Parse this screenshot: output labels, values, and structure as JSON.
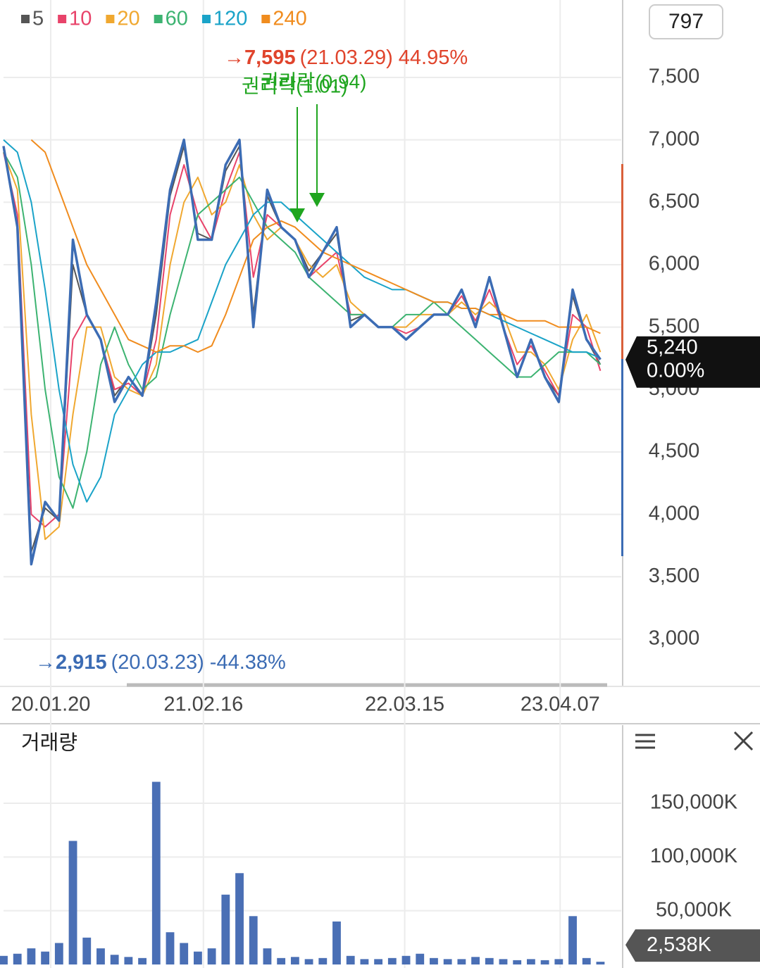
{
  "chart_data": [
    {
      "type": "line",
      "badge": "797",
      "xlim": [
        0,
        44.5
      ],
      "xticks": [
        {
          "value": 3.4,
          "label": "20.01.20"
        },
        {
          "value": 14.4,
          "label": "21.02.16"
        },
        {
          "value": 28.9,
          "label": "22.03.15"
        },
        {
          "value": 40.1,
          "label": "23.04.07"
        }
      ],
      "ylim": [
        2650,
        8120
      ],
      "yticks": [
        {
          "value": 3000,
          "label": "3,000"
        },
        {
          "value": 3500,
          "label": "3,500"
        },
        {
          "value": 4000,
          "label": "4,000"
        },
        {
          "value": 4500,
          "label": "4,500"
        },
        {
          "value": 5000,
          "label": "5,000"
        },
        {
          "value": 5500,
          "label": "5,500"
        },
        {
          "value": 6000,
          "label": "6,000"
        },
        {
          "value": 6500,
          "label": "6,500"
        },
        {
          "value": 7000,
          "label": "7,000"
        },
        {
          "value": 7500,
          "label": "7,500"
        }
      ],
      "grid": true,
      "candles": {
        "color": "#3c6cb4",
        "values": [
          6950,
          6300,
          3600,
          4100,
          3950,
          6200,
          5600,
          5400,
          4900,
          5100,
          4950,
          5700,
          6600,
          7000,
          6200,
          6200,
          6800,
          7000,
          5500,
          6600,
          6300,
          6200,
          5900,
          6100,
          6300,
          5500,
          5600,
          5500,
          5500,
          5400,
          5500,
          5600,
          5600,
          5800,
          5500,
          5900,
          5500,
          5100,
          5400,
          5100,
          4900,
          5800,
          5400,
          5240
        ]
      },
      "series": [
        {
          "name": "5",
          "color": "#555555",
          "values": [
            6950,
            6300,
            3700,
            4050,
            3950,
            6000,
            5600,
            5400,
            4950,
            5100,
            4950,
            5600,
            6550,
            6950,
            6250,
            6200,
            6750,
            6950,
            5600,
            6550,
            6300,
            6200,
            5950,
            6100,
            6250,
            5550,
            5600,
            5500,
            5500,
            5400,
            5500,
            5600,
            5600,
            5800,
            5500,
            5900,
            5500,
            5100,
            5400,
            5100,
            4950,
            5750,
            5400,
            5200
          ]
        },
        {
          "name": "10",
          "color": "#e8436a",
          "values": [
            6900,
            6400,
            4000,
            3900,
            4000,
            5400,
            5600,
            5400,
            5000,
            5050,
            4950,
            5400,
            6400,
            6800,
            6400,
            6200,
            6600,
            6900,
            5900,
            6400,
            6300,
            6200,
            5900,
            6000,
            6100,
            5600,
            5600,
            5500,
            5500,
            5450,
            5500,
            5600,
            5600,
            5750,
            5550,
            5800,
            5500,
            5200,
            5350,
            5150,
            4950,
            5600,
            5500,
            5150
          ]
        },
        {
          "name": "20",
          "color": "#f0a830",
          "values": [
            6900,
            6600,
            4800,
            3800,
            3900,
            4800,
            5500,
            5500,
            5100,
            5000,
            4950,
            5200,
            6000,
            6500,
            6700,
            6400,
            6500,
            6800,
            6400,
            6200,
            6300,
            6200,
            6000,
            5900,
            6000,
            5700,
            5600,
            5500,
            5500,
            5500,
            5600,
            5600,
            5600,
            5700,
            5600,
            5700,
            5600,
            5300,
            5300,
            5200,
            5000,
            5400,
            5600,
            5300
          ]
        },
        {
          "name": "60",
          "color": "#3cb371",
          "values": [
            6900,
            6700,
            6000,
            5000,
            4300,
            4050,
            4500,
            5200,
            5500,
            5200,
            5000,
            5100,
            5600,
            6000,
            6400,
            6500,
            6600,
            6700,
            6500,
            6300,
            6200,
            6100,
            5900,
            5800,
            5700,
            5600,
            5600,
            5500,
            5500,
            5600,
            5600,
            5700,
            5600,
            5500,
            5400,
            5300,
            5200,
            5100,
            5100,
            5200,
            5300,
            5300,
            5300,
            5200
          ]
        },
        {
          "name": "120",
          "color": "#1aa3c8",
          "values": [
            7000,
            6900,
            6500,
            5800,
            5000,
            4400,
            4100,
            4300,
            4800,
            5000,
            5200,
            5300,
            5300,
            5350,
            5400,
            5700,
            6000,
            6200,
            6400,
            6500,
            6500,
            6400,
            6300,
            6200,
            6100,
            6000,
            5900,
            5850,
            5800,
            5800,
            5750,
            5700,
            5700,
            5650,
            5650,
            5600,
            5550,
            5500,
            5450,
            5400,
            5350,
            5300,
            5300,
            5250
          ]
        },
        {
          "name": "240",
          "color": "#f08c1e",
          "values": [
            null,
            null,
            7000,
            6900,
            6600,
            6300,
            6000,
            5800,
            5600,
            5400,
            5350,
            5300,
            5350,
            5350,
            5300,
            5350,
            5600,
            5900,
            6200,
            6300,
            6350,
            6300,
            6200,
            6100,
            6050,
            6000,
            5950,
            5900,
            5850,
            5800,
            5750,
            5700,
            5700,
            5650,
            5650,
            5600,
            5600,
            5550,
            5550,
            5550,
            5500,
            5500,
            5500,
            5450
          ]
        }
      ],
      "high": {
        "label": "7,595",
        "date": "(21.03.29)",
        "change": "44.95%",
        "color": "#e0442c"
      },
      "low": {
        "label": "2,915",
        "date": "(20.03.23)",
        "change": "-44.38%",
        "color": "#3c6cb4"
      },
      "events": [
        "권리락(0.94)",
        "권리락(1.01)"
      ],
      "current": {
        "value": 5240,
        "label": "5,240",
        "change": "0.00%"
      }
    },
    {
      "type": "bar",
      "title": "거래량",
      "color": "#4a6fb5",
      "values": [
        8000,
        10000,
        15000,
        12000,
        20000,
        115000,
        25000,
        15000,
        9000,
        7000,
        6000,
        170000,
        30000,
        20000,
        12000,
        15000,
        65000,
        85000,
        45000,
        15000,
        6000,
        7000,
        5000,
        6000,
        40000,
        8000,
        5000,
        5000,
        6000,
        8000,
        10000,
        6000,
        5000,
        5000,
        7000,
        6000,
        5000,
        4000,
        5000,
        4000,
        5000,
        45000,
        6000,
        2538
      ],
      "ylim": [
        0,
        190000
      ],
      "yticks": [
        {
          "value": 50000,
          "label": "50,000K"
        },
        {
          "value": 100000,
          "label": "100,000K"
        },
        {
          "value": 150000,
          "label": "150,000K"
        }
      ],
      "current": {
        "value": 2538,
        "label": "2,538K"
      }
    }
  ]
}
